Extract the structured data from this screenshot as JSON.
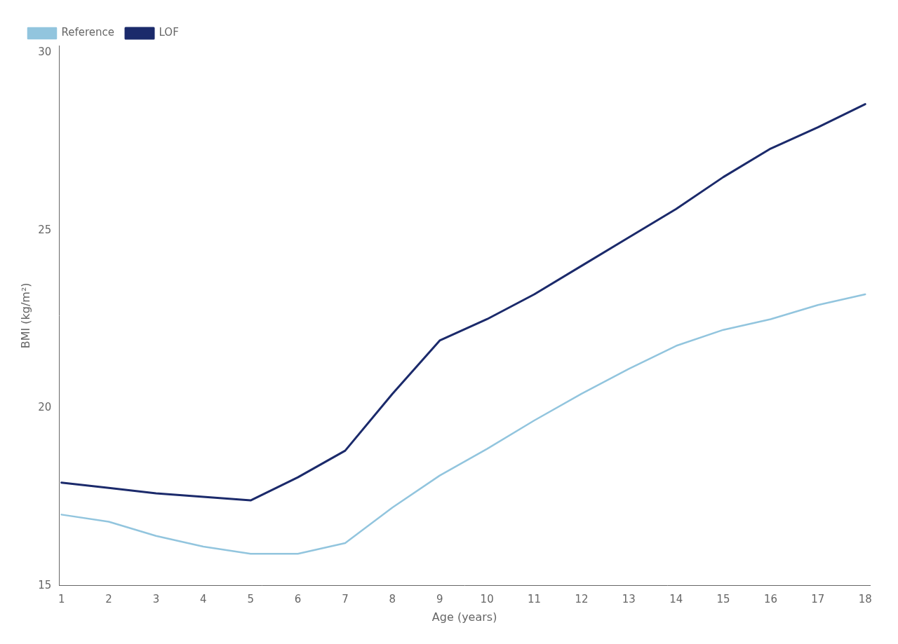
{
  "chart_data": {
    "type": "line",
    "x": [
      1,
      2,
      3,
      4,
      5,
      6,
      7,
      8,
      9,
      10,
      11,
      12,
      13,
      14,
      15,
      16,
      17,
      18
    ],
    "series": [
      {
        "name": "Reference",
        "color": "#92C5DE",
        "values": [
          17.0,
          16.8,
          16.4,
          16.1,
          15.9,
          15.9,
          16.2,
          17.2,
          18.1,
          18.85,
          19.65,
          20.4,
          21.1,
          21.75,
          22.2,
          22.5,
          22.9,
          23.2
        ]
      },
      {
        "name": "LOF",
        "color": "#1B2A6B",
        "values": [
          17.9,
          17.75,
          17.6,
          17.5,
          17.4,
          18.05,
          18.8,
          20.4,
          21.9,
          22.5,
          23.2,
          24.0,
          24.8,
          25.6,
          26.5,
          27.3,
          27.9,
          28.55
        ]
      }
    ],
    "xlabel": "Age (years)",
    "ylabel": "BMI (kg/m²)",
    "xlim": [
      0.95,
      18.1
    ],
    "ylim": [
      15,
      30.2
    ],
    "xticks": [
      1,
      2,
      3,
      4,
      5,
      6,
      7,
      8,
      9,
      10,
      11,
      12,
      13,
      14,
      15,
      16,
      17,
      18
    ],
    "yticks": [
      15,
      20,
      25,
      30
    ],
    "grid": false,
    "legend": "upper left"
  }
}
